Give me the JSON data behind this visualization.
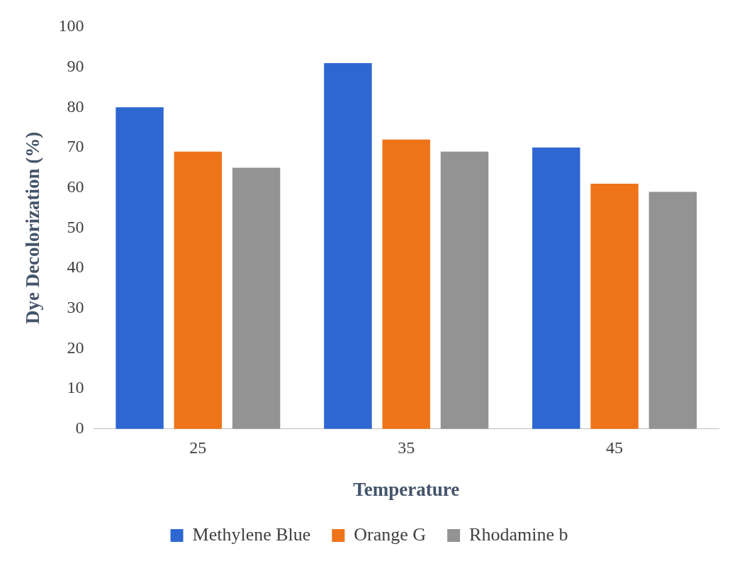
{
  "chart_data": {
    "type": "bar",
    "xlabel": "Temperature",
    "ylabel": "Dye Decolorization (%)",
    "categories": [
      "25",
      "35",
      "45"
    ],
    "series": [
      {
        "name": "Methylene Blue",
        "color": "#2e67d2",
        "values": [
          80,
          91,
          70
        ]
      },
      {
        "name": "Orange G",
        "color": "#ef7419",
        "values": [
          69,
          72,
          61
        ]
      },
      {
        "name": "Rhodamine b",
        "color": "#939393",
        "values": [
          65,
          69,
          59
        ]
      }
    ],
    "ylim": [
      0,
      100
    ],
    "yticks": [
      0,
      10,
      20,
      30,
      40,
      50,
      60,
      70,
      80,
      90,
      100
    ],
    "grid": false,
    "legend": "bottom"
  }
}
